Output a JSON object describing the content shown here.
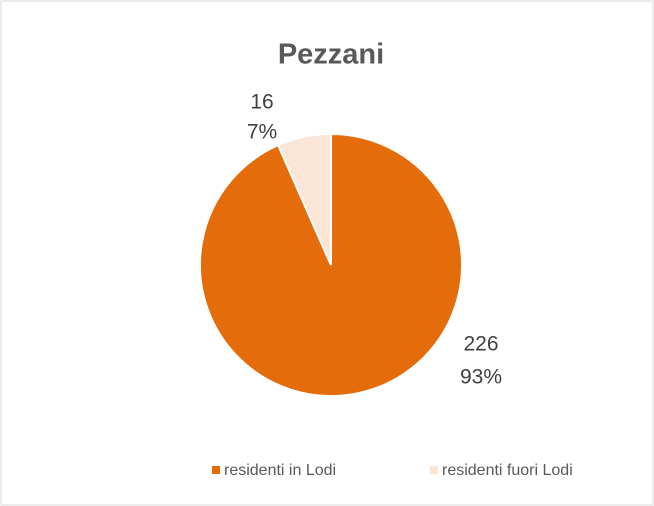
{
  "chart_data": {
    "type": "pie",
    "title": "Pezzani",
    "categories": [
      "residenti in Lodi",
      "residenti fuori Lodi"
    ],
    "values": [
      226,
      16
    ],
    "percent_labels": [
      "93%",
      "7%"
    ],
    "colors": [
      "#E46C0A",
      "#FBE5D6"
    ],
    "legend": "bottom"
  }
}
